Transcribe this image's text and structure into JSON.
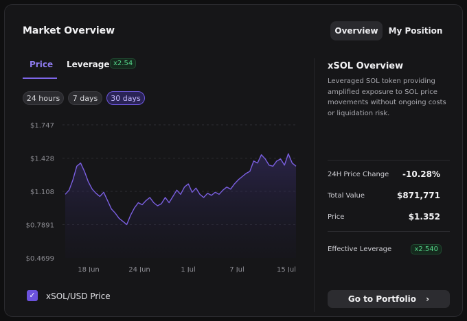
{
  "header": {
    "title": "Market Overview",
    "tab_overview": "Overview",
    "tab_position": "My Position"
  },
  "chart_tabs": {
    "price": "Price",
    "leverage": "Leverage",
    "leverage_badge": "x2.54"
  },
  "ranges": {
    "r24": "24 hours",
    "r7": "7 days",
    "r30": "30 days",
    "selected": "30 days"
  },
  "legend": {
    "label": "xSOL/USD Price",
    "checked": true
  },
  "sidebar": {
    "title": "xSOL Overview",
    "description": "Leveraged SOL token providing amplified exposure to SOL price movements without ongoing costs or liquidation risk.",
    "change_label": "24H Price Change",
    "change_value": "-10.28%",
    "total_label": "Total Value",
    "total_value": "$871,771",
    "price_label": "Price",
    "price_value": "$1.352",
    "lev_label": "Effective Leverage",
    "lev_value": "x2.540",
    "button_label": "Go to Portfolio"
  },
  "colors": {
    "accent": "#7d66e8",
    "positive": "#55d68a",
    "line": "#7a5fe0"
  },
  "chart_data": {
    "type": "line",
    "ylim": [
      0.4699,
      1.747
    ],
    "yticks": [
      "$1.747",
      "$1.428",
      "$1.108",
      "$0.7891",
      "$0.4699"
    ],
    "xticks": [
      "18 Jun",
      "24 Jun",
      "1 Jul",
      "7 Jul",
      "15 Jul"
    ],
    "grid": true,
    "series": [
      {
        "values": [
          1.08,
          1.12,
          1.22,
          1.35,
          1.38,
          1.3,
          1.2,
          1.13,
          1.09,
          1.06,
          1.1,
          1.02,
          0.94,
          0.9,
          0.85,
          0.82,
          0.79,
          0.88,
          0.95,
          1.0,
          0.98,
          1.02,
          1.05,
          1.0,
          0.97,
          0.99,
          1.05,
          1.0,
          1.06,
          1.12,
          1.08,
          1.15,
          1.18,
          1.1,
          1.14,
          1.08,
          1.05,
          1.09,
          1.07,
          1.1,
          1.08,
          1.12,
          1.15,
          1.13,
          1.18,
          1.22,
          1.25,
          1.28,
          1.3,
          1.4,
          1.38,
          1.46,
          1.42,
          1.36,
          1.35,
          1.4,
          1.42,
          1.36,
          1.47,
          1.38,
          1.35
        ]
      }
    ]
  }
}
